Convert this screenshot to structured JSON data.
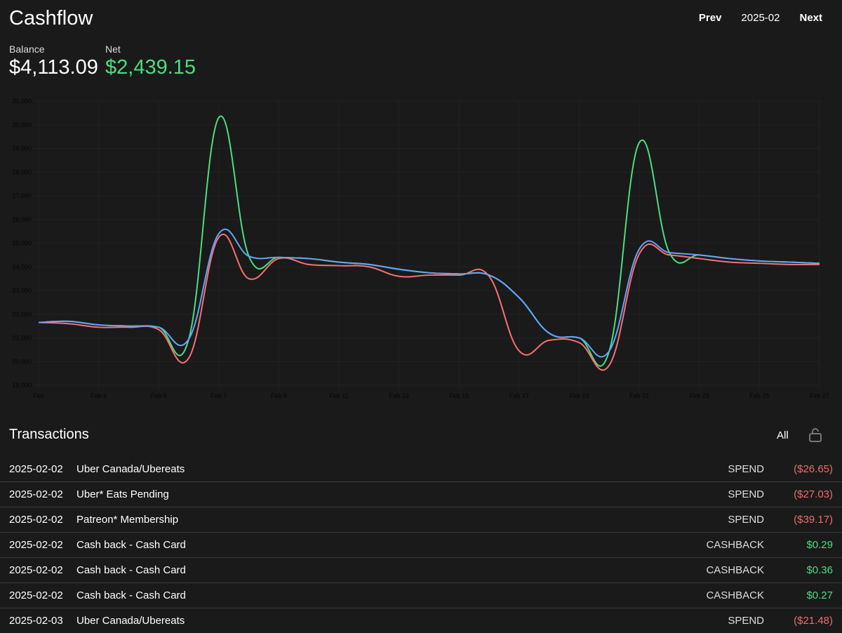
{
  "header": {
    "title": "Cashflow",
    "prev": "Prev",
    "period": "2025-02",
    "next": "Next"
  },
  "stats": {
    "balance_label": "Balance",
    "balance": "$4,113.09",
    "net_label": "Net",
    "net": "$2,439.15",
    "net_color": "#4ade80"
  },
  "chart_data": {
    "type": "line",
    "x": [
      "Feb",
      "Feb 2",
      "Feb 3",
      "Feb 4",
      "Feb 5",
      "Feb 6",
      "Feb 7",
      "Feb 8",
      "Feb 9",
      "Feb 10",
      "Feb 11",
      "Feb 12",
      "Feb 13",
      "Feb 14",
      "Feb 15",
      "Feb 16",
      "Feb 17",
      "Feb 18",
      "Feb 19",
      "Feb 20",
      "Feb 21",
      "Feb 22",
      "Feb 23",
      "Feb 24",
      "Feb 25",
      "Feb 26",
      "Feb 27"
    ],
    "xticks": [
      "Feb",
      "Feb 3",
      "Feb 5",
      "Feb 7",
      "Feb 9",
      "Feb 11",
      "Feb 13",
      "Feb 15",
      "Feb 17",
      "Feb 19",
      "Feb 21",
      "Feb 23",
      "Feb 25",
      "Feb 27"
    ],
    "yticks": [
      "19,000",
      "20,000",
      "21,000",
      "22,000",
      "23,000",
      "24,000",
      "25,000",
      "26,000",
      "27,000",
      "28,000",
      "29,000",
      "30,000",
      "31,000"
    ],
    "ylim": [
      19000,
      31000
    ],
    "grid": true,
    "series": [
      {
        "name": "green",
        "color": "#4ade80",
        "values": [
          21650,
          21700,
          21550,
          21500,
          21450,
          20950,
          30300,
          24450,
          24400,
          24350,
          24200,
          24100,
          23900,
          23750,
          23700,
          23650,
          22700,
          21200,
          21000,
          20450,
          29250,
          24600,
          24500,
          24350,
          24250,
          24200,
          24150
        ]
      },
      {
        "name": "red",
        "color": "#f87171",
        "values": [
          21650,
          21600,
          21450,
          21450,
          21350,
          20150,
          25250,
          23500,
          24350,
          24100,
          24050,
          24000,
          23600,
          23650,
          23650,
          23600,
          20450,
          20900,
          20800,
          19850,
          24550,
          24500,
          24350,
          24200,
          24150,
          24100,
          24100
        ]
      },
      {
        "name": "blue",
        "color": "#60a5fa",
        "values": [
          21650,
          21700,
          21550,
          21500,
          21450,
          20950,
          25400,
          24450,
          24400,
          24350,
          24200,
          24100,
          23900,
          23750,
          23700,
          23650,
          22700,
          21200,
          21000,
          20450,
          24750,
          24600,
          24500,
          24350,
          24250,
          24200,
          24150
        ]
      }
    ]
  },
  "transactions": {
    "title": "Transactions",
    "filter": "All",
    "rows": [
      {
        "date": "2025-02-02",
        "name": "Uber Canada/Ubereats",
        "type": "SPEND",
        "amount": "($26.65)",
        "sign": "neg"
      },
      {
        "date": "2025-02-02",
        "name": "Uber* Eats Pending",
        "type": "SPEND",
        "amount": "($27.03)",
        "sign": "neg"
      },
      {
        "date": "2025-02-02",
        "name": "Patreon* Membership",
        "type": "SPEND",
        "amount": "($39.17)",
        "sign": "neg"
      },
      {
        "date": "2025-02-02",
        "name": "Cash back - Cash Card",
        "type": "CASHBACK",
        "amount": "$0.29",
        "sign": "pos"
      },
      {
        "date": "2025-02-02",
        "name": "Cash back - Cash Card",
        "type": "CASHBACK",
        "amount": "$0.36",
        "sign": "pos"
      },
      {
        "date": "2025-02-02",
        "name": "Cash back - Cash Card",
        "type": "CASHBACK",
        "amount": "$0.27",
        "sign": "pos"
      },
      {
        "date": "2025-02-03",
        "name": "Uber Canada/Ubereats",
        "type": "SPEND",
        "amount": "($21.48)",
        "sign": "neg"
      }
    ]
  }
}
